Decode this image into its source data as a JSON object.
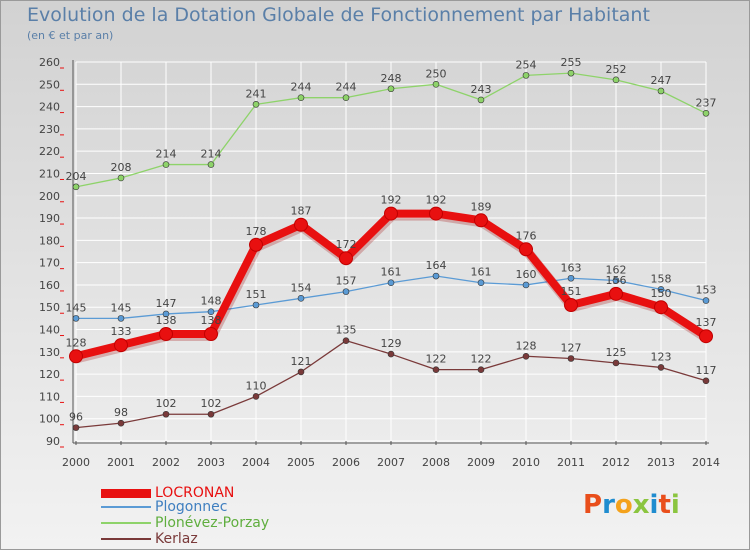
{
  "title": "Evolution de la Dotation Globale de Fonctionnement par Habitant",
  "subtitle": "(en € et par an)",
  "logo": {
    "text": "Proxiti",
    "colors": [
      "#e94e1b",
      "#1f8ccf",
      "#f4a21c",
      "#8bc53f",
      "#1f8ccf",
      "#e94e1b",
      "#8bc53f"
    ]
  },
  "chart_data": {
    "type": "line",
    "title": "Evolution de la Dotation Globale de Fonctionnement par Habitant",
    "ylabel": "",
    "xlabel": "",
    "ylim": [
      90,
      260
    ],
    "yticks": [
      "90",
      "100",
      "110",
      "120",
      "130",
      "140",
      "150",
      "160",
      "170",
      "180",
      "190",
      "200",
      "210",
      "220",
      "230",
      "240",
      "250",
      "260"
    ],
    "grid": true,
    "legend": "bottom-left",
    "x": [
      "2000",
      "2001",
      "2002",
      "2003",
      "2004",
      "2005",
      "2006",
      "2007",
      "2008",
      "2009",
      "2010",
      "2011",
      "2012",
      "2013",
      "2014"
    ],
    "series": [
      {
        "name": "LOCRONAN",
        "color": "#e81010",
        "values": [
          128,
          133,
          138,
          138,
          178,
          187,
          172,
          192,
          192,
          189,
          176,
          151,
          156,
          150,
          137
        ],
        "labels": [
          "128",
          "133",
          "138",
          "138",
          "178",
          "187",
          "172",
          "192",
          "192",
          "189",
          "176",
          "151",
          "156",
          "150",
          "137"
        ]
      },
      {
        "name": "Plogonnec",
        "color": "#5b9bd5",
        "values": [
          145,
          145,
          147,
          148,
          151,
          154,
          157,
          161,
          164,
          161,
          160,
          163,
          162,
          158,
          153
        ],
        "labels": [
          "145",
          "145",
          "147",
          "148",
          "151",
          "154",
          "157",
          "161",
          "164",
          "161",
          "160",
          "163",
          "162",
          "158",
          "153"
        ]
      },
      {
        "name": "Plonévez-Porzay",
        "color": "#8ed36a",
        "values": [
          204,
          208,
          214,
          214,
          241,
          244,
          244,
          248,
          250,
          243,
          254,
          255,
          252,
          247,
          237
        ],
        "labels": [
          "204",
          "208",
          "214",
          "214",
          "241",
          "244",
          "244",
          "248",
          "250",
          "243",
          "254",
          "255",
          "252",
          "247",
          "237"
        ]
      },
      {
        "name": "Kerlaz",
        "color": "#7a3a3a",
        "values": [
          96,
          98,
          102,
          102,
          110,
          121,
          135,
          129,
          122,
          122,
          128,
          127,
          125,
          123,
          117
        ],
        "labels": [
          "96",
          "98",
          "102",
          "102",
          "110",
          "121",
          "135",
          "129",
          "122",
          "122",
          "128",
          "127",
          "125",
          "123",
          "117"
        ]
      }
    ]
  }
}
